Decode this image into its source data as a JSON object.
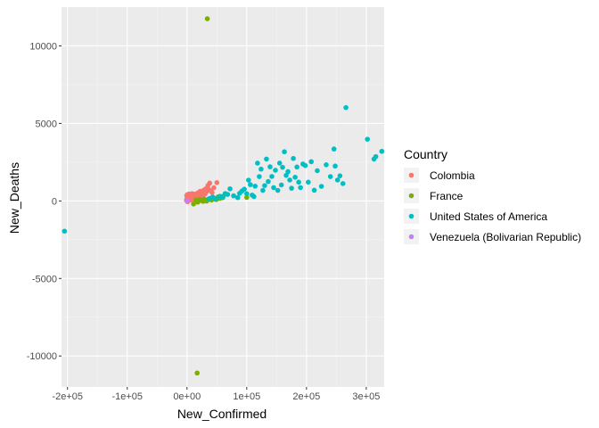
{
  "chart_data": {
    "type": "scatter",
    "title": "",
    "xlabel": "New_Confirmed",
    "ylabel": "New_Deaths",
    "xlim": [
      -210000,
      330000
    ],
    "ylim": [
      -12000,
      12500
    ],
    "x_ticks": [
      -200000,
      -100000,
      0,
      100000,
      200000,
      300000
    ],
    "x_tick_labels": [
      "-2e+05",
      "-1e+05",
      "0e+00",
      "1e+05",
      "2e+05",
      "3e+05"
    ],
    "y_ticks": [
      -10000,
      -5000,
      0,
      5000,
      10000
    ],
    "y_tick_labels": [
      "-10000",
      "-5000",
      "0",
      "5000",
      "10000"
    ],
    "grid": true,
    "background": "#ebebeb",
    "legend": {
      "title": "Country",
      "position": "right",
      "entries": [
        "Colombia",
        "France",
        "United States of America",
        "Venezuela (Bolivarian Republic)"
      ]
    },
    "series": [
      {
        "name": "Colombia",
        "color": "#F8766D",
        "points": [
          [
            -1000,
            50
          ],
          [
            -500,
            350
          ],
          [
            0,
            150
          ],
          [
            500,
            400
          ],
          [
            1000,
            -50
          ],
          [
            1500,
            250
          ],
          [
            2000,
            100
          ],
          [
            2500,
            300
          ],
          [
            3000,
            450
          ],
          [
            3500,
            50
          ],
          [
            4000,
            200
          ],
          [
            4500,
            350
          ],
          [
            5000,
            120
          ],
          [
            5500,
            280
          ],
          [
            6000,
            420
          ],
          [
            6500,
            60
          ],
          [
            7000,
            330
          ],
          [
            7500,
            180
          ],
          [
            8000,
            470
          ],
          [
            8500,
            240
          ],
          [
            9000,
            110
          ],
          [
            9500,
            380
          ],
          [
            10000,
            200
          ],
          [
            10500,
            310
          ],
          [
            11000,
            450
          ],
          [
            11500,
            150
          ],
          [
            12000,
            280
          ],
          [
            12500,
            390
          ],
          [
            13000,
            220
          ],
          [
            13500,
            350
          ],
          [
            14000,
            80
          ],
          [
            14500,
            430
          ],
          [
            15000,
            260
          ],
          [
            15500,
            170
          ],
          [
            16000,
            370
          ],
          [
            17000,
            300
          ],
          [
            18000,
            520
          ],
          [
            19000,
            240
          ],
          [
            20000,
            470
          ],
          [
            21000,
            350
          ],
          [
            22000,
            620
          ],
          [
            23000,
            410
          ],
          [
            24000,
            280
          ],
          [
            25000,
            560
          ],
          [
            26000,
            480
          ],
          [
            27000,
            380
          ],
          [
            28000,
            690
          ],
          [
            29000,
            520
          ],
          [
            30000,
            440
          ],
          [
            31000,
            770
          ],
          [
            33000,
            600
          ],
          [
            35000,
            990
          ],
          [
            37000,
            720
          ],
          [
            38000,
            1150
          ],
          [
            40000,
            650
          ],
          [
            42000,
            540
          ],
          [
            45000,
            850
          ],
          [
            50000,
            1180
          ]
        ]
      },
      {
        "name": "France",
        "color": "#7CAE00",
        "points": [
          [
            34000,
            11750
          ],
          [
            11000,
            -200
          ],
          [
            15000,
            50
          ],
          [
            18000,
            -80
          ],
          [
            21000,
            80
          ],
          [
            24000,
            30
          ],
          [
            27000,
            -30
          ],
          [
            29000,
            120
          ],
          [
            31000,
            60
          ],
          [
            33000,
            -10
          ],
          [
            36000,
            100
          ],
          [
            39000,
            170
          ],
          [
            41000,
            60
          ],
          [
            44000,
            220
          ],
          [
            46000,
            130
          ],
          [
            49000,
            90
          ],
          [
            52000,
            260
          ],
          [
            55000,
            160
          ],
          [
            58000,
            200
          ],
          [
            61000,
            320
          ],
          [
            100000,
            230
          ],
          [
            17000,
            -11100
          ]
        ]
      },
      {
        "name": "United States of America",
        "color": "#00BFC4",
        "points": [
          [
            -205000,
            -1950
          ],
          [
            37000,
            150
          ],
          [
            43000,
            250
          ],
          [
            48000,
            120
          ],
          [
            55000,
            300
          ],
          [
            60000,
            220
          ],
          [
            64000,
            480
          ],
          [
            68000,
            420
          ],
          [
            72000,
            780
          ],
          [
            78000,
            330
          ],
          [
            85000,
            210
          ],
          [
            88000,
            490
          ],
          [
            92000,
            640
          ],
          [
            96000,
            760
          ],
          [
            100000,
            470
          ],
          [
            103000,
            1340
          ],
          [
            106000,
            1050
          ],
          [
            109000,
            380
          ],
          [
            112000,
            280
          ],
          [
            114000,
            950
          ],
          [
            118000,
            2440
          ],
          [
            121000,
            1570
          ],
          [
            124000,
            2050
          ],
          [
            127000,
            680
          ],
          [
            130000,
            990
          ],
          [
            133000,
            2700
          ],
          [
            136000,
            1250
          ],
          [
            139000,
            2200
          ],
          [
            142000,
            1580
          ],
          [
            145000,
            860
          ],
          [
            148000,
            1980
          ],
          [
            152000,
            680
          ],
          [
            155000,
            2440
          ],
          [
            158000,
            1030
          ],
          [
            160000,
            2170
          ],
          [
            163000,
            3170
          ],
          [
            166000,
            1650
          ],
          [
            169000,
            1890
          ],
          [
            172000,
            1350
          ],
          [
            175000,
            820
          ],
          [
            178000,
            2740
          ],
          [
            181000,
            1530
          ],
          [
            184000,
            2190
          ],
          [
            187000,
            1210
          ],
          [
            190000,
            860
          ],
          [
            194000,
            2380
          ],
          [
            198000,
            2280
          ],
          [
            203000,
            1210
          ],
          [
            208000,
            2530
          ],
          [
            213000,
            690
          ],
          [
            218000,
            1950
          ],
          [
            225000,
            940
          ],
          [
            233000,
            2330
          ],
          [
            240000,
            1570
          ],
          [
            246000,
            3350
          ],
          [
            248000,
            2250
          ],
          [
            252000,
            1350
          ],
          [
            256000,
            1620
          ],
          [
            261000,
            1120
          ],
          [
            266000,
            6020
          ],
          [
            302000,
            3980
          ],
          [
            313000,
            2700
          ],
          [
            316000,
            2860
          ],
          [
            326000,
            3200
          ]
        ]
      },
      {
        "name": "Venezuela (Bolivarian Republic)",
        "color": "#C77CFF",
        "points": [
          [
            200,
            5
          ],
          [
            400,
            10
          ]
        ]
      }
    ]
  }
}
